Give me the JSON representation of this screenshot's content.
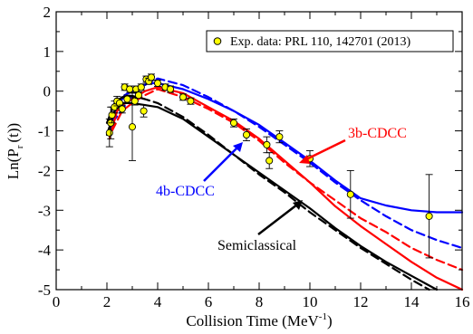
{
  "chart_data": {
    "type": "line",
    "title": "",
    "xlabel": "Collision Time (MeV",
    "xlabel_sup": "-1",
    "xlabel_suffix": ")",
    "ylabel": "Ln(P",
    "ylabel_sub": "r",
    "ylabel_suffix": "(t))",
    "xlim": [
      0,
      16
    ],
    "ylim": [
      -5,
      2
    ],
    "x_ticks": [
      0,
      2,
      4,
      6,
      8,
      10,
      12,
      14,
      16
    ],
    "y_ticks": [
      -5,
      -4,
      -3,
      -2,
      -1,
      0,
      1,
      2
    ],
    "legend": {
      "placement": "top-right",
      "label": "Exp. data: PRL 110, 142701 (2013)"
    },
    "annotations": [
      {
        "text": "3b-CDCC",
        "color": "#ff0000"
      },
      {
        "text": "4b-CDCC",
        "color": "#0000ff"
      },
      {
        "text": "Semiclassical",
        "color": "#000000"
      }
    ],
    "series": [
      {
        "color": "#0000ff",
        "dash": "solid",
        "points": [
          [
            2.1,
            -1.0
          ],
          [
            2.4,
            -0.4
          ],
          [
            2.7,
            -0.1
          ],
          [
            3.0,
            0.0
          ],
          [
            3.3,
            0.1
          ],
          [
            3.6,
            0.2
          ],
          [
            4.0,
            0.2
          ],
          [
            5.0,
            0.05
          ],
          [
            6.0,
            -0.2
          ],
          [
            7.0,
            -0.5
          ],
          [
            8.0,
            -0.85
          ],
          [
            9.0,
            -1.3
          ],
          [
            10.0,
            -1.75
          ],
          [
            11.0,
            -2.25
          ],
          [
            12.0,
            -2.7
          ],
          [
            13.0,
            -2.88
          ],
          [
            14.0,
            -3.0
          ],
          [
            15.0,
            -3.05
          ],
          [
            16.0,
            -3.05
          ]
        ]
      },
      {
        "color": "#0000ff",
        "dash": "dashed",
        "points": [
          [
            2.2,
            -0.8
          ],
          [
            2.8,
            -0.3
          ],
          [
            3.2,
            0.0
          ],
          [
            3.6,
            0.2
          ],
          [
            4.0,
            0.32
          ],
          [
            5.0,
            0.15
          ],
          [
            6.0,
            -0.15
          ],
          [
            7.0,
            -0.5
          ],
          [
            8.0,
            -0.9
          ],
          [
            9.0,
            -1.35
          ],
          [
            10.0,
            -1.8
          ],
          [
            11.0,
            -2.3
          ],
          [
            12.0,
            -2.75
          ],
          [
            13.0,
            -3.15
          ],
          [
            14.0,
            -3.5
          ],
          [
            15.0,
            -3.75
          ],
          [
            16.0,
            -3.95
          ]
        ]
      },
      {
        "color": "#ff0000",
        "dash": "solid",
        "points": [
          [
            2.1,
            -1.2
          ],
          [
            2.4,
            -0.5
          ],
          [
            2.7,
            -0.3
          ],
          [
            3.0,
            -0.2
          ],
          [
            3.5,
            0.0
          ],
          [
            4.0,
            0.1
          ],
          [
            5.0,
            -0.05
          ],
          [
            6.0,
            -0.4
          ],
          [
            7.0,
            -0.75
          ],
          [
            8.0,
            -1.2
          ],
          [
            9.0,
            -1.75
          ],
          [
            10.0,
            -2.3
          ],
          [
            11.0,
            -2.9
          ],
          [
            12.0,
            -3.4
          ],
          [
            13.0,
            -3.85
          ],
          [
            14.0,
            -4.3
          ],
          [
            15.0,
            -4.7
          ],
          [
            16.0,
            -5.0
          ]
        ]
      },
      {
        "color": "#ff0000",
        "dash": "dashed",
        "points": [
          [
            2.2,
            -1.0
          ],
          [
            2.6,
            -0.5
          ],
          [
            3.0,
            -0.3
          ],
          [
            3.5,
            -0.1
          ],
          [
            4.0,
            0.05
          ],
          [
            5.0,
            -0.15
          ],
          [
            6.0,
            -0.45
          ],
          [
            7.0,
            -0.8
          ],
          [
            8.0,
            -1.25
          ],
          [
            9.0,
            -1.8
          ],
          [
            10.0,
            -2.3
          ],
          [
            11.0,
            -2.75
          ],
          [
            12.0,
            -3.2
          ],
          [
            13.0,
            -3.55
          ],
          [
            14.0,
            -3.95
          ],
          [
            15.0,
            -4.25
          ],
          [
            16.0,
            -4.5
          ]
        ]
      },
      {
        "color": "#000000",
        "dash": "solid",
        "points": [
          [
            2.0,
            -1.1
          ],
          [
            2.3,
            -0.5
          ],
          [
            2.6,
            -0.3
          ],
          [
            3.0,
            -0.3
          ],
          [
            3.5,
            -0.35
          ],
          [
            4.0,
            -0.4
          ],
          [
            5.0,
            -0.7
          ],
          [
            6.0,
            -1.15
          ],
          [
            7.0,
            -1.6
          ],
          [
            8.0,
            -2.05
          ],
          [
            9.0,
            -2.5
          ],
          [
            10.0,
            -2.95
          ],
          [
            11.0,
            -3.45
          ],
          [
            12.0,
            -3.9
          ],
          [
            13.0,
            -4.3
          ],
          [
            14.0,
            -4.65
          ],
          [
            15.0,
            -5.0
          ]
        ]
      },
      {
        "color": "#000000",
        "dash": "dashed",
        "points": [
          [
            2.0,
            -0.8
          ],
          [
            2.3,
            -0.3
          ],
          [
            2.6,
            -0.15
          ],
          [
            3.0,
            -0.12
          ],
          [
            3.5,
            -0.2
          ],
          [
            4.0,
            -0.3
          ],
          [
            5.0,
            -0.65
          ],
          [
            6.0,
            -1.1
          ],
          [
            7.0,
            -1.6
          ],
          [
            8.0,
            -2.1
          ],
          [
            9.0,
            -2.55
          ],
          [
            10.0,
            -3.05
          ],
          [
            11.0,
            -3.5
          ],
          [
            12.0,
            -3.95
          ],
          [
            13.0,
            -4.35
          ],
          [
            14.0,
            -4.75
          ],
          [
            14.7,
            -5.0
          ]
        ]
      }
    ],
    "exp_data": [
      {
        "x": 2.1,
        "y": -1.05,
        "err": 0.35
      },
      {
        "x": 2.15,
        "y": -0.8,
        "err": 0.4
      },
      {
        "x": 2.2,
        "y": -0.6,
        "err": 0.2
      },
      {
        "x": 2.3,
        "y": -0.4,
        "err": 0.15
      },
      {
        "x": 2.4,
        "y": -0.25,
        "err": 0.12
      },
      {
        "x": 2.5,
        "y": -0.3,
        "err": 0.12
      },
      {
        "x": 2.6,
        "y": -0.45,
        "err": 0.1
      },
      {
        "x": 2.7,
        "y": 0.1,
        "err": 0.08
      },
      {
        "x": 2.8,
        "y": -0.2,
        "err": 0.1
      },
      {
        "x": 2.9,
        "y": 0.05,
        "err": 0.08
      },
      {
        "x": 3.0,
        "y": -0.9,
        "err": 0.85
      },
      {
        "x": 3.1,
        "y": -0.25,
        "err": 0.1
      },
      {
        "x": 3.15,
        "y": 0.05,
        "err": 0.08
      },
      {
        "x": 3.25,
        "y": -0.1,
        "err": 0.08
      },
      {
        "x": 3.35,
        "y": 0.1,
        "err": 0.08
      },
      {
        "x": 3.45,
        "y": -0.5,
        "err": 0.15
      },
      {
        "x": 3.55,
        "y": 0.3,
        "err": 0.08
      },
      {
        "x": 3.65,
        "y": 0.25,
        "err": 0.08
      },
      {
        "x": 3.75,
        "y": 0.35,
        "err": 0.08
      },
      {
        "x": 4.0,
        "y": 0.2,
        "err": 0.08
      },
      {
        "x": 4.3,
        "y": 0.1,
        "err": 0.08
      },
      {
        "x": 4.5,
        "y": 0.05,
        "err": 0.08
      },
      {
        "x": 5.0,
        "y": -0.15,
        "err": 0.08
      },
      {
        "x": 5.3,
        "y": -0.25,
        "err": 0.08
      },
      {
        "x": 7.0,
        "y": -0.8,
        "err": 0.1
      },
      {
        "x": 7.5,
        "y": -1.1,
        "err": 0.15
      },
      {
        "x": 8.3,
        "y": -1.35,
        "err": 0.2
      },
      {
        "x": 8.8,
        "y": -1.15,
        "err": 0.15
      },
      {
        "x": 8.4,
        "y": -1.75,
        "err": 0.2
      },
      {
        "x": 10.0,
        "y": -1.7,
        "err": 0.2
      },
      {
        "x": 11.6,
        "y": -2.6,
        "err": 0.6
      },
      {
        "x": 14.7,
        "y": -3.15,
        "err": 1.05
      }
    ]
  }
}
